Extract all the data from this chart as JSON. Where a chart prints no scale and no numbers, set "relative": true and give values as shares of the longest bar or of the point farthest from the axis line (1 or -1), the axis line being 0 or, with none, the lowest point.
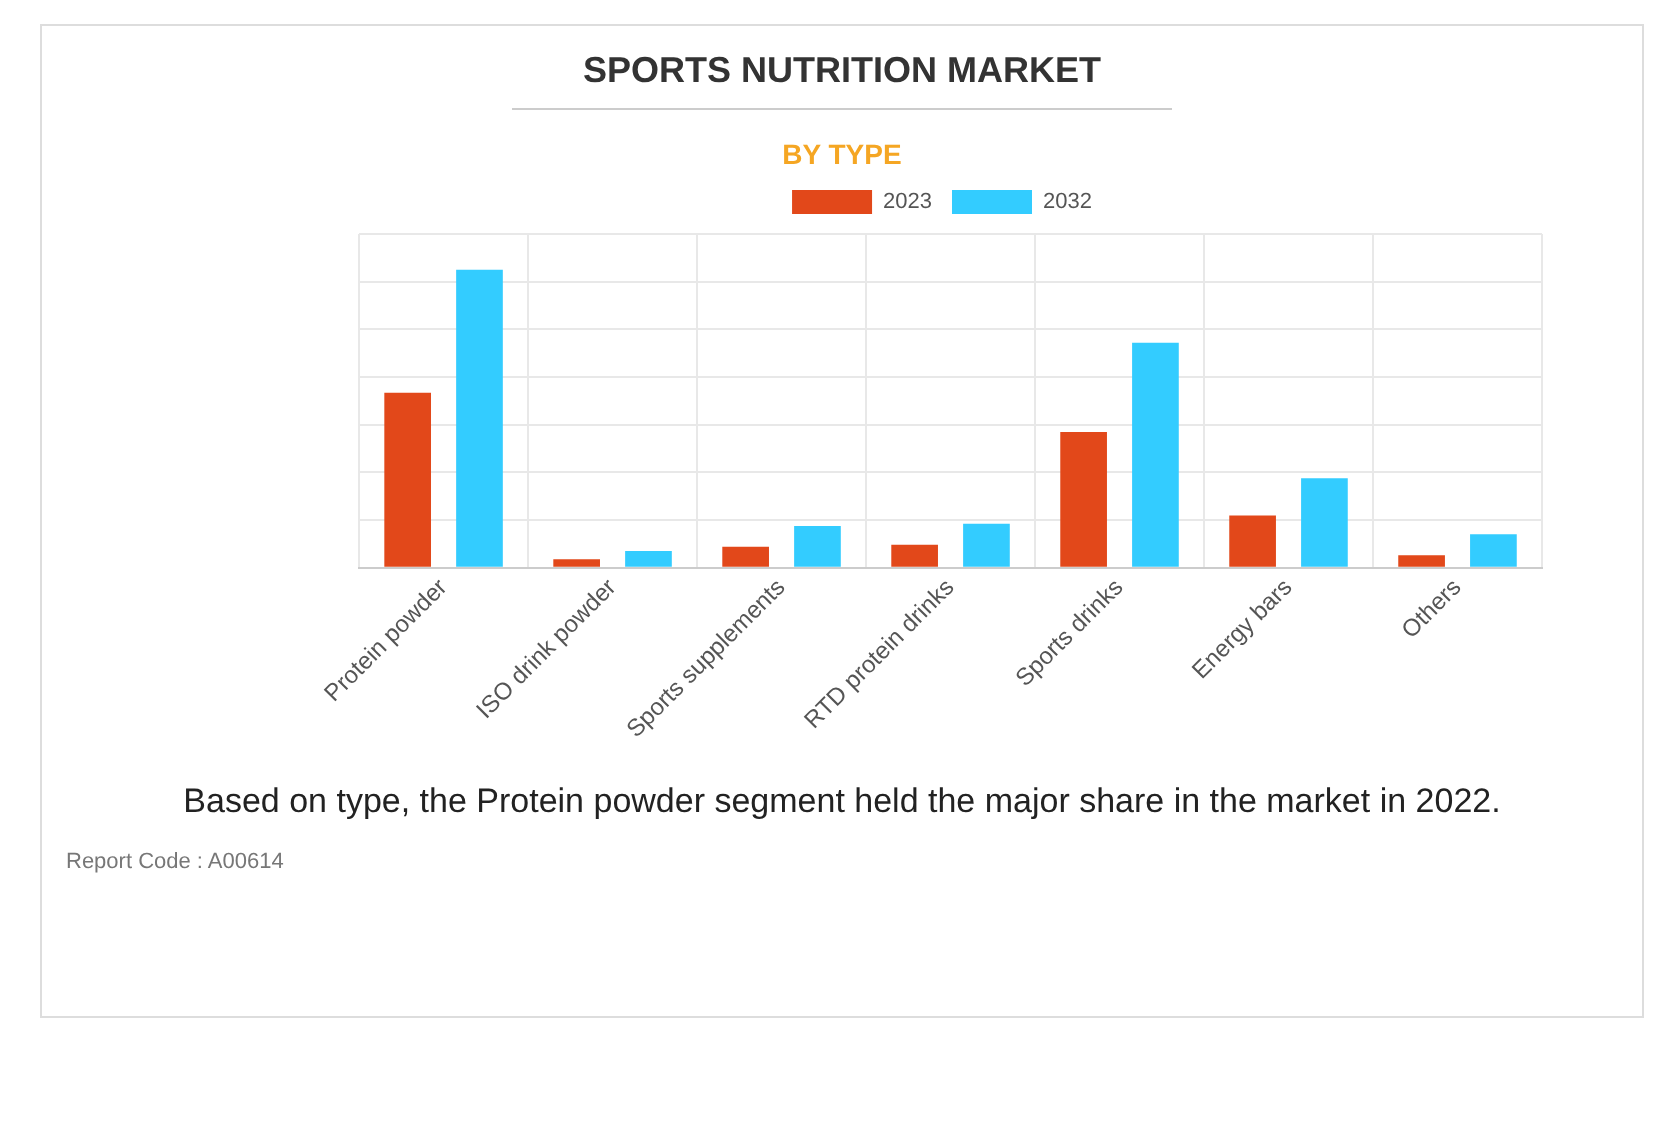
{
  "chart_data": {
    "type": "bar",
    "title": "SPORTS NUTRITION MARKET",
    "subtitle": "BY TYPE",
    "relative": true,
    "categories": [
      "Protein powder",
      "ISO drink powder",
      "Sports supplements",
      "RTD protein drinks",
      "Sports drinks",
      "Energy bars",
      "Others"
    ],
    "series": [
      {
        "name": "2023",
        "color": "#e2481a",
        "values": [
          0.587,
          0.028,
          0.07,
          0.077,
          0.455,
          0.175,
          0.042
        ]
      },
      {
        "name": "2032",
        "color": "#33ccff",
        "values": [
          1,
          0.056,
          0.14,
          0.147,
          0.755,
          0.3,
          0.112
        ]
      }
    ],
    "grid": true,
    "legend": "top",
    "annotations": [
      "Based on type, the Protein powder segment held the major share in the market in 2022.",
      "Report Code : A00614"
    ]
  }
}
